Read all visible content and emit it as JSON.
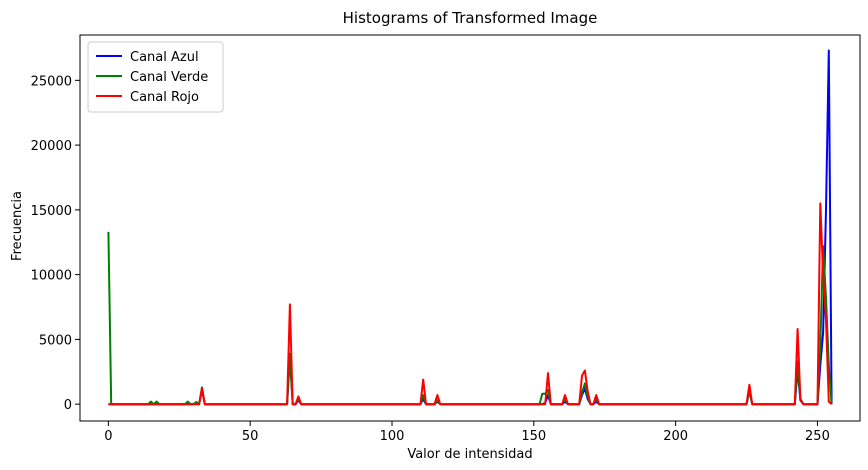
{
  "chart_data": {
    "type": "line",
    "title": "Histograms of Transformed Image",
    "xlabel": "Valor de intensidad",
    "ylabel": "Frecuencia",
    "xlim": [
      -10,
      265
    ],
    "ylim": [
      -1300,
      28500
    ],
    "xticks": [
      0,
      50,
      100,
      150,
      200,
      250
    ],
    "yticks": [
      0,
      5000,
      10000,
      15000,
      20000,
      25000
    ],
    "legend_position": "top-left",
    "grid": false,
    "series": [
      {
        "name": "Canal Azul",
        "color": "#0000ff",
        "points": [
          [
            0,
            0
          ],
          [
            30,
            0
          ],
          [
            31,
            150
          ],
          [
            32,
            0
          ],
          [
            33,
            1100
          ],
          [
            34,
            0
          ],
          [
            63,
            0
          ],
          [
            64,
            3700
          ],
          [
            65,
            0
          ],
          [
            66,
            0
          ],
          [
            67,
            300
          ],
          [
            68,
            0
          ],
          [
            110,
            0
          ],
          [
            111,
            400
          ],
          [
            112,
            0
          ],
          [
            115,
            0
          ],
          [
            116,
            200
          ],
          [
            117,
            0
          ],
          [
            153,
            0
          ],
          [
            154,
            100
          ],
          [
            155,
            700
          ],
          [
            156,
            0
          ],
          [
            160,
            0
          ],
          [
            161,
            200
          ],
          [
            162,
            0
          ],
          [
            166,
            0
          ],
          [
            167,
            700
          ],
          [
            168,
            1200
          ],
          [
            169,
            400
          ],
          [
            170,
            0
          ],
          [
            171,
            0
          ],
          [
            172,
            200
          ],
          [
            173,
            0
          ],
          [
            225,
            0
          ],
          [
            226,
            1000
          ],
          [
            227,
            0
          ],
          [
            242,
            0
          ],
          [
            243,
            2700
          ],
          [
            244,
            300
          ],
          [
            245,
            0
          ],
          [
            250,
            0
          ],
          [
            251,
            3000
          ],
          [
            252,
            5500
          ],
          [
            253,
            15000
          ],
          [
            254,
            27300
          ],
          [
            255,
            0
          ]
        ]
      },
      {
        "name": "Canal Verde",
        "color": "#008000",
        "points": [
          [
            0,
            13300
          ],
          [
            1,
            0
          ],
          [
            14,
            0
          ],
          [
            15,
            200
          ],
          [
            16,
            0
          ],
          [
            17,
            200
          ],
          [
            18,
            0
          ],
          [
            27,
            0
          ],
          [
            28,
            200
          ],
          [
            29,
            0
          ],
          [
            30,
            0
          ],
          [
            31,
            150
          ],
          [
            32,
            0
          ],
          [
            33,
            1300
          ],
          [
            34,
            0
          ],
          [
            63,
            0
          ],
          [
            64,
            3900
          ],
          [
            65,
            0
          ],
          [
            66,
            0
          ],
          [
            67,
            400
          ],
          [
            68,
            0
          ],
          [
            110,
            0
          ],
          [
            111,
            700
          ],
          [
            112,
            0
          ],
          [
            115,
            0
          ],
          [
            116,
            300
          ],
          [
            117,
            0
          ],
          [
            152,
            0
          ],
          [
            153,
            800
          ],
          [
            154,
            800
          ],
          [
            155,
            1100
          ],
          [
            156,
            0
          ],
          [
            160,
            0
          ],
          [
            161,
            400
          ],
          [
            162,
            0
          ],
          [
            166,
            0
          ],
          [
            167,
            900
          ],
          [
            168,
            1600
          ],
          [
            169,
            600
          ],
          [
            170,
            0
          ],
          [
            171,
            0
          ],
          [
            172,
            400
          ],
          [
            173,
            0
          ],
          [
            225,
            0
          ],
          [
            226,
            1100
          ],
          [
            227,
            0
          ],
          [
            242,
            0
          ],
          [
            243,
            3300
          ],
          [
            244,
            400
          ],
          [
            245,
            0
          ],
          [
            250,
            0
          ],
          [
            251,
            4500
          ],
          [
            252,
            12200
          ],
          [
            253,
            8200
          ],
          [
            254,
            3000
          ],
          [
            255,
            0
          ]
        ]
      },
      {
        "name": "Canal Rojo",
        "color": "#ff0000",
        "points": [
          [
            0,
            0
          ],
          [
            32,
            0
          ],
          [
            33,
            1200
          ],
          [
            34,
            0
          ],
          [
            63,
            0
          ],
          [
            64,
            7700
          ],
          [
            65,
            0
          ],
          [
            66,
            0
          ],
          [
            67,
            600
          ],
          [
            68,
            0
          ],
          [
            110,
            0
          ],
          [
            111,
            1900
          ],
          [
            112,
            0
          ],
          [
            115,
            0
          ],
          [
            116,
            700
          ],
          [
            117,
            0
          ],
          [
            154,
            0
          ],
          [
            155,
            2400
          ],
          [
            156,
            0
          ],
          [
            160,
            0
          ],
          [
            161,
            700
          ],
          [
            162,
            0
          ],
          [
            166,
            0
          ],
          [
            167,
            2200
          ],
          [
            168,
            2600
          ],
          [
            169,
            1000
          ],
          [
            170,
            0
          ],
          [
            171,
            0
          ],
          [
            172,
            700
          ],
          [
            173,
            0
          ],
          [
            225,
            0
          ],
          [
            226,
            1500
          ],
          [
            227,
            0
          ],
          [
            242,
            0
          ],
          [
            243,
            5800
          ],
          [
            244,
            400
          ],
          [
            245,
            0
          ],
          [
            250,
            0
          ],
          [
            251,
            15500
          ],
          [
            252,
            10000
          ],
          [
            253,
            6500
          ],
          [
            254,
            200
          ],
          [
            255,
            0
          ]
        ]
      }
    ]
  }
}
